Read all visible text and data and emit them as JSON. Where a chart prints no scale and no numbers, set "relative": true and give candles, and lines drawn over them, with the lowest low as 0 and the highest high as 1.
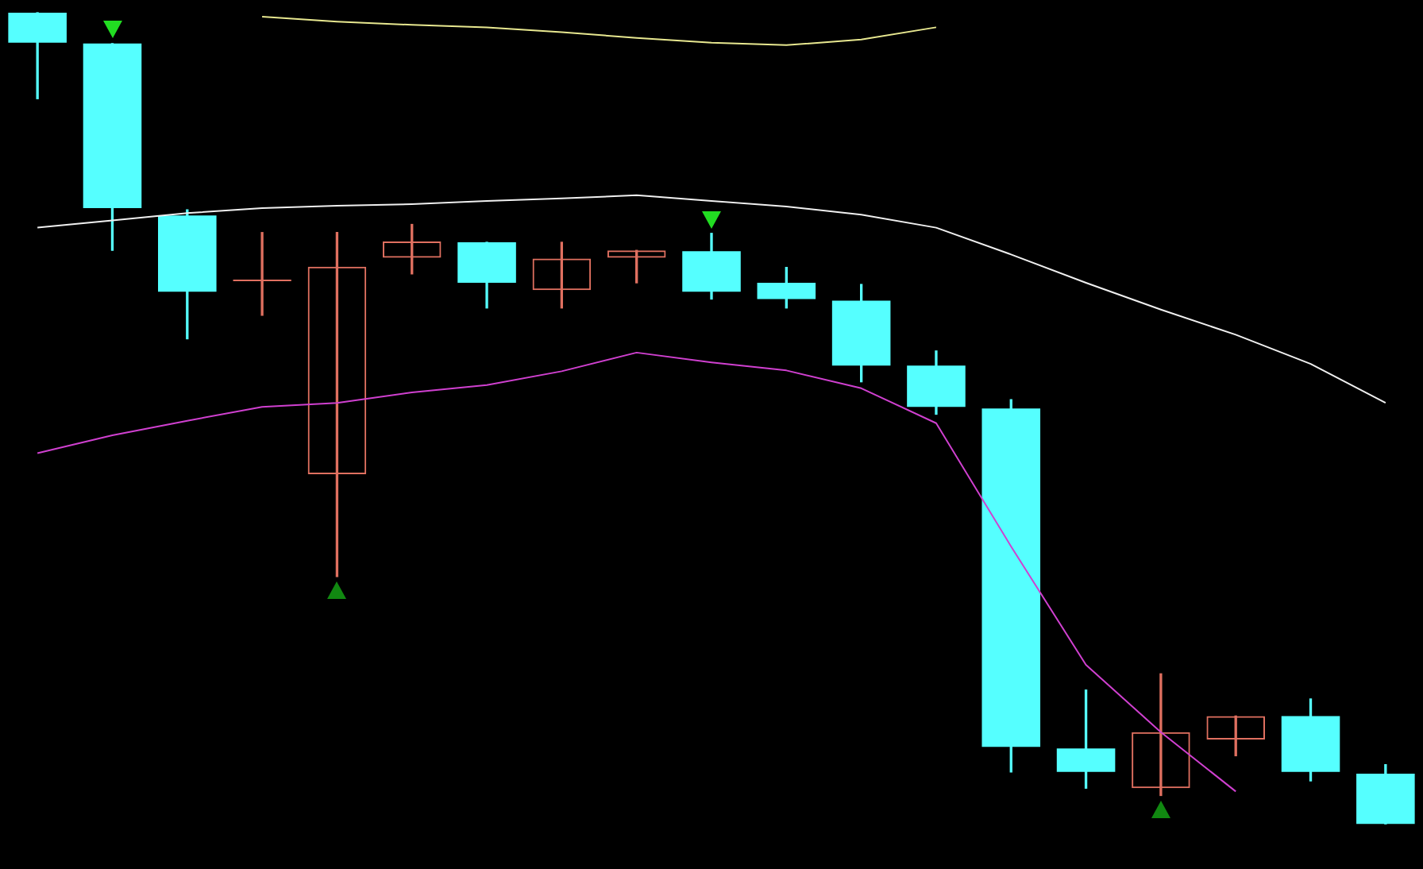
{
  "chart_data": {
    "type": "candlestick",
    "relative": true,
    "legend": false,
    "categories": [
      null,
      null,
      null,
      null,
      null,
      null,
      null,
      null,
      null,
      null,
      null,
      null,
      null,
      null,
      null,
      null,
      null,
      null,
      null
    ],
    "ohlc": [
      [
        1,
        1,
        0.894,
        0.963
      ],
      [
        0.962,
        0.962,
        0.707,
        0.759
      ],
      [
        0.75,
        0.757,
        0.598,
        0.656
      ],
      [
        0.669,
        0.729,
        0.627,
        0.669
      ],
      [
        0.431,
        0.729,
        0.305,
        0.687
      ],
      [
        0.698,
        0.739,
        0.678,
        0.718
      ],
      [
        0.717,
        0.717,
        0.636,
        0.667
      ],
      [
        0.658,
        0.717,
        0.636,
        0.697
      ],
      [
        0.698,
        0.707,
        0.667,
        0.707
      ],
      [
        0.706,
        0.728,
        0.647,
        0.656
      ],
      [
        0.667,
        0.686,
        0.636,
        0.647
      ],
      [
        0.645,
        0.665,
        0.545,
        0.565
      ],
      [
        0.565,
        0.583,
        0.505,
        0.514
      ],
      [
        0.512,
        0.523,
        0.064,
        0.095
      ],
      [
        0.093,
        0.165,
        0.044,
        0.064
      ],
      [
        0.044,
        0.185,
        0.035,
        0.113
      ],
      [
        0.104,
        0.133,
        0.084,
        0.133
      ],
      [
        0.133,
        0.154,
        0.053,
        0.064
      ],
      [
        0.062,
        0.073,
        0,
        0
      ]
    ],
    "colors": [
      "#55ffff",
      "#55ffff",
      "#55ffff",
      "#e07060",
      "#e07060",
      "#e07060",
      "#55ffff",
      "#e07060",
      "#e07060",
      "#55ffff",
      "#55ffff",
      "#55ffff",
      "#55ffff",
      "#55ffff",
      "#55ffff",
      "#e07060",
      "#e07060",
      "#55ffff",
      "#55ffff"
    ],
    "series": [
      {
        "type": "line",
        "color": "#e8e890",
        "values": [
          null,
          null,
          null,
          0.995,
          0.989,
          0.985,
          0.982,
          0.976,
          0.969,
          0.963,
          0.96,
          0.967,
          0.982,
          null,
          null,
          null,
          null,
          null,
          null
        ]
      },
      {
        "type": "line",
        "color": "#f0f0f0",
        "values": [
          0.735,
          0.744,
          0.753,
          0.759,
          0.762,
          0.764,
          0.768,
          0.771,
          0.775,
          0.768,
          0.761,
          0.751,
          0.735,
          0.702,
          0.667,
          0.634,
          0.603,
          0.567,
          0.519
        ]
      },
      {
        "type": "line",
        "color": "#d040d0",
        "values": [
          0.457,
          0.479,
          0.497,
          0.514,
          0.519,
          0.532,
          0.541,
          0.558,
          0.581,
          0.569,
          0.559,
          0.537,
          0.494,
          0.342,
          0.196,
          0.113,
          0.04,
          null,
          null
        ]
      }
    ]
  }
}
